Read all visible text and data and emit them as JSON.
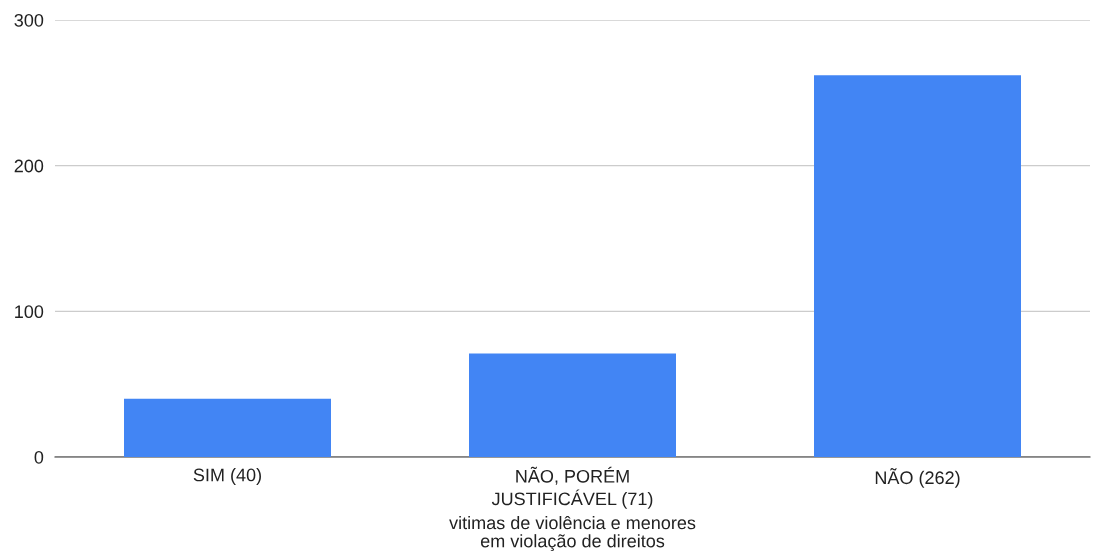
{
  "chart_data": {
    "type": "bar",
    "categories": [
      "SIM (40)",
      "NÃO, PORÉM\nJUSTIFICÁVEL (71)",
      "NÃO (262)"
    ],
    "values": [
      40,
      71,
      262
    ],
    "color": "#4285f4",
    "xlabel": "vitimas de violência e menores\nem violação de direitos",
    "ylim": [
      0,
      300
    ],
    "yticks": [
      0,
      100,
      200,
      300
    ],
    "grid": "y",
    "legend": false
  }
}
